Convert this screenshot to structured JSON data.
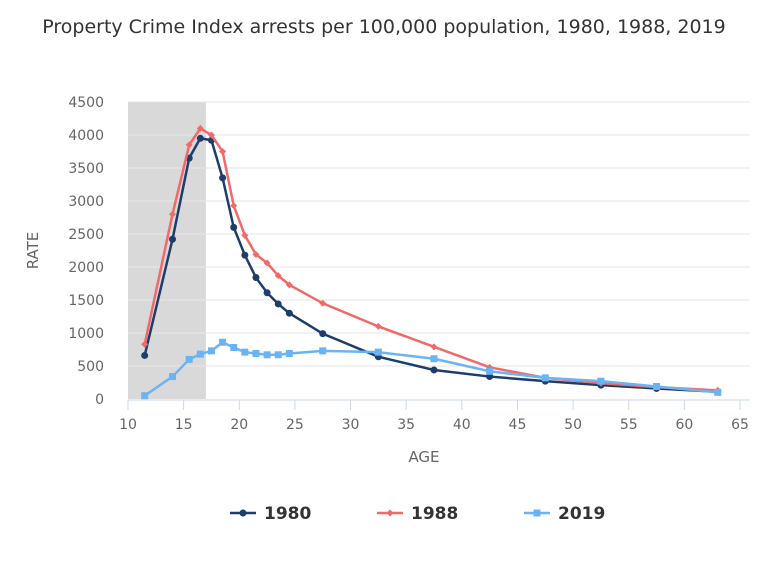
{
  "chart_data": {
    "type": "line",
    "title": "Property Crime Index arrests per 100,000 population, 1980, 1988, 2019",
    "xlabel": "AGE",
    "ylabel": "RATE",
    "xlim": [
      10,
      65
    ],
    "ylim": [
      0,
      4500
    ],
    "xticks": [
      10,
      15,
      20,
      25,
      30,
      35,
      40,
      45,
      50,
      55,
      60,
      65
    ],
    "yticks": [
      0,
      500,
      1000,
      1500,
      2000,
      2500,
      3000,
      3500,
      4000,
      4500
    ],
    "grid": "horizontal",
    "shaded_band": [
      10,
      17
    ],
    "legend_position": "bottom",
    "x": [
      11.5,
      14,
      15.5,
      16.5,
      17.5,
      18.5,
      19.5,
      20.5,
      21.5,
      22.5,
      23.5,
      24.5,
      27.5,
      32.5,
      37.5,
      42.5,
      47.5,
      52.5,
      57.5,
      63
    ],
    "series": [
      {
        "name": "1980",
        "color": "#1f3d6b",
        "marker": "circle",
        "values": [
          660,
          2420,
          3650,
          3950,
          3920,
          3350,
          2600,
          2180,
          1840,
          1610,
          1440,
          1300,
          990,
          640,
          440,
          340,
          270,
          210,
          160,
          110
        ]
      },
      {
        "name": "1988",
        "color": "#f06a6a",
        "marker": "diamond",
        "values": [
          830,
          2800,
          3850,
          4100,
          4000,
          3750,
          2930,
          2480,
          2190,
          2060,
          1870,
          1730,
          1450,
          1100,
          790,
          480,
          320,
          240,
          180,
          130
        ]
      },
      {
        "name": "2019",
        "color": "#6ab4f5",
        "marker": "square",
        "values": [
          50,
          340,
          600,
          680,
          730,
          860,
          780,
          710,
          690,
          670,
          670,
          690,
          730,
          710,
          610,
          420,
          320,
          270,
          190,
          100
        ]
      }
    ]
  }
}
